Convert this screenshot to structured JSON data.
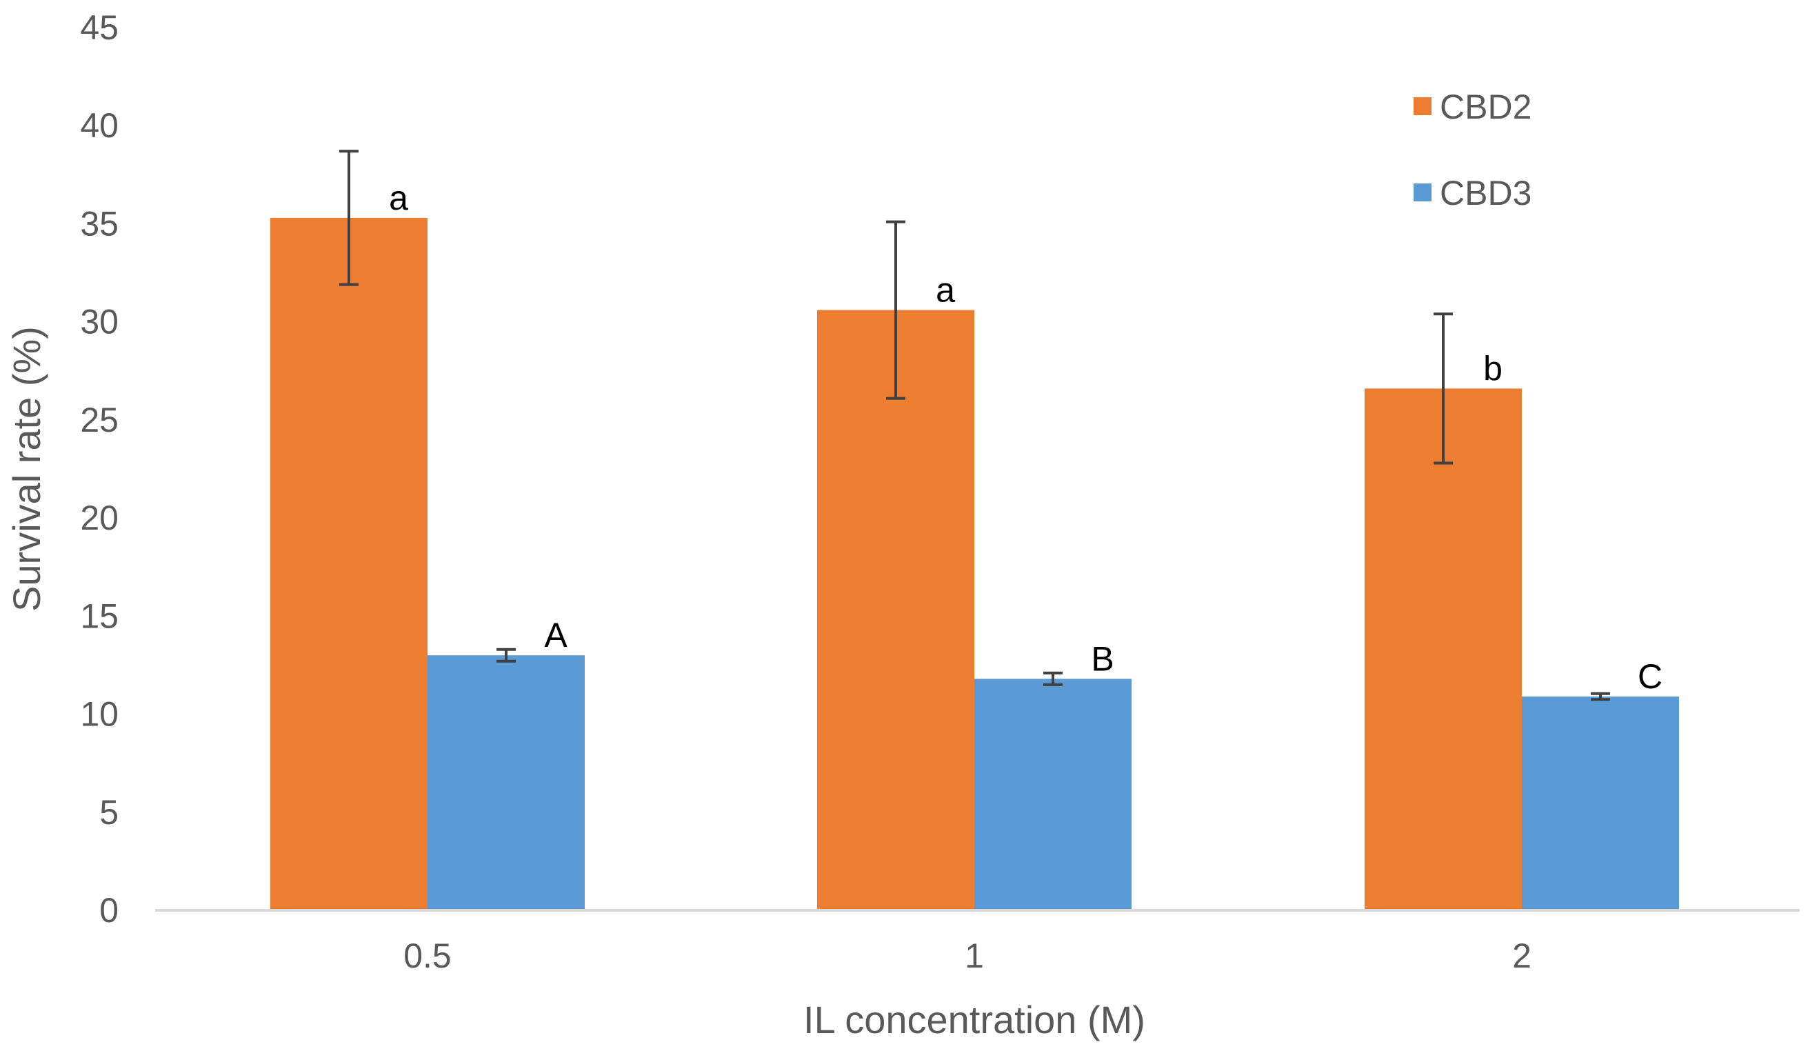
{
  "chart_data": {
    "type": "bar",
    "title": "",
    "xlabel": "IL concentration (M)",
    "ylabel": "Survival rate (%)",
    "ylim": [
      0,
      45
    ],
    "yticks": [
      0,
      5,
      10,
      15,
      20,
      25,
      30,
      35,
      40,
      45
    ],
    "categories": [
      "0.5",
      "1",
      "2"
    ],
    "grid": false,
    "legend_position": "top-right",
    "series": [
      {
        "name": "CBD2",
        "color": "#ED7D31",
        "values": [
          35.3,
          30.6,
          26.6
        ],
        "errors": [
          3.4,
          4.5,
          3.8
        ],
        "labels": [
          "a",
          "a",
          "b"
        ]
      },
      {
        "name": "CBD3",
        "color": "#5B9BD5",
        "values": [
          13.0,
          11.8,
          10.9
        ],
        "errors": [
          0.3,
          0.3,
          0.15
        ],
        "labels": [
          "A",
          "B",
          "C"
        ]
      }
    ],
    "axis_color": "#D9D9D9",
    "error_bar_color": "#404040"
  }
}
